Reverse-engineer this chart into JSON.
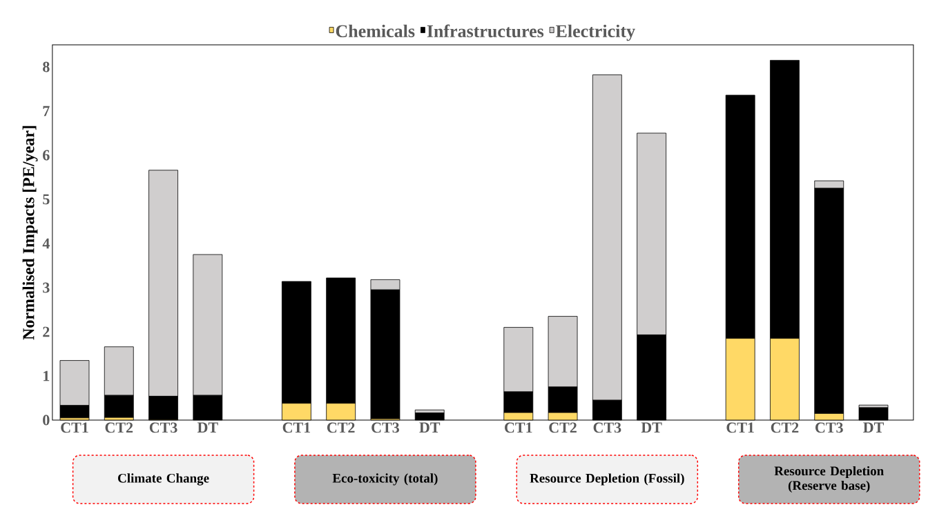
{
  "chart_data": {
    "type": "bar",
    "stacked": true,
    "ylabel": "Normalised Impacts [PE/year]",
    "categories": [
      "CT1",
      "CT2",
      "CT3",
      "DT",
      null,
      "CT1",
      "CT2",
      "CT3",
      "DT",
      null,
      "CT1",
      "CT2",
      "CT3",
      "DT",
      null,
      "CT1",
      "CT2",
      "CT3",
      "DT"
    ],
    "series": [
      {
        "name": "Chemicals",
        "color": "#ffd966",
        "values": [
          0.05,
          0.06,
          0.01,
          0,
          null,
          0.38,
          0.38,
          0.03,
          0,
          null,
          0.17,
          0.17,
          0,
          0,
          null,
          1.85,
          1.85,
          0.15,
          0
        ]
      },
      {
        "name": "Infrastructures",
        "color": "#000000",
        "values": [
          0.28,
          0.5,
          0.53,
          0.56,
          null,
          2.76,
          2.84,
          2.92,
          0.16,
          null,
          0.47,
          0.58,
          0.45,
          1.93,
          null,
          5.51,
          6.3,
          5.1,
          0.28
        ]
      },
      {
        "name": "Electricity",
        "color": "#d0cece",
        "values": [
          1.02,
          1.1,
          5.12,
          3.19,
          null,
          0,
          0,
          0.23,
          0.07,
          null,
          1.46,
          1.6,
          7.37,
          4.57,
          null,
          0,
          0,
          0.17,
          0.06
        ]
      }
    ],
    "ylim": [
      0,
      8.5
    ],
    "yticks": [
      0,
      1,
      2,
      3,
      4,
      5,
      6,
      7,
      8
    ],
    "grid": false,
    "legend": "top",
    "annotations": [
      "Climate Change",
      "Eco-toxicity (total)",
      "Resource Depletion (Fossil)",
      "Resource Depletion (Reserve base)"
    ]
  }
}
